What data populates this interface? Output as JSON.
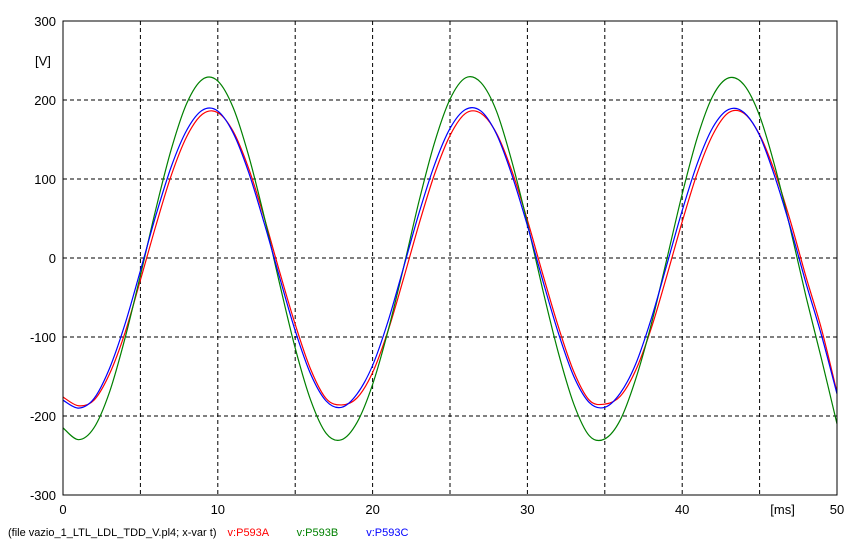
{
  "chart_data": {
    "type": "line",
    "x_unit": "[ms]",
    "y_unit": "[V]",
    "xlim": [
      0,
      50
    ],
    "ylim": [
      -300,
      300
    ],
    "x_ticks": [
      0,
      10,
      20,
      30,
      40,
      50
    ],
    "y_ticks": [
      -300,
      -200,
      -100,
      0,
      100,
      200,
      300
    ],
    "grid": true,
    "file_caption": "(file vazio_1_LTL_LDL_TDD_V.pl4; x-var t)",
    "series": [
      {
        "name": "v:P593A",
        "color": "#ff0000",
        "x": [
          0,
          1,
          2,
          3,
          4,
          5,
          6,
          7,
          8,
          9,
          10,
          11,
          12,
          13,
          14,
          15,
          16,
          17,
          18,
          19,
          20,
          21,
          22,
          23,
          24,
          25,
          26,
          27,
          28,
          29,
          30,
          31,
          32,
          33,
          34,
          35,
          36,
          37,
          38,
          39,
          40,
          41,
          42,
          43,
          44,
          45,
          46,
          47,
          48,
          49,
          50
        ],
        "values": [
          -176,
          -187,
          -180,
          -147,
          -95,
          -28,
          41,
          105,
          154,
          182,
          184,
          160,
          113,
          51,
          -18,
          -84,
          -141,
          -178,
          -186,
          -177,
          -145,
          -92,
          -26,
          43,
          106,
          155,
          183,
          183,
          158,
          110,
          48,
          -21,
          -87,
          -144,
          -180,
          -185,
          -175,
          -142,
          -89,
          -23,
          46,
          109,
          157,
          184,
          183,
          156,
          108,
          46,
          -24,
          -90,
          -170
        ]
      },
      {
        "name": "v:P593B",
        "color": "#008000",
        "x": [
          0,
          1,
          2,
          3,
          4,
          5,
          6,
          7,
          8,
          9,
          10,
          11,
          12,
          13,
          14,
          15,
          16,
          17,
          18,
          19,
          20,
          21,
          22,
          23,
          24,
          25,
          26,
          27,
          28,
          29,
          30,
          31,
          32,
          33,
          34,
          35,
          36,
          37,
          38,
          39,
          40,
          41,
          42,
          43,
          44,
          45,
          46,
          47,
          48,
          49,
          50
        ],
        "values": [
          -215,
          -230,
          -215,
          -170,
          -102,
          -22,
          62,
          138,
          196,
          226,
          224,
          190,
          129,
          52,
          -33,
          -114,
          -180,
          -222,
          -230,
          -208,
          -160,
          -92,
          -12,
          72,
          146,
          201,
          228,
          222,
          186,
          122,
          44,
          -41,
          -120,
          -185,
          -225,
          -229,
          -205,
          -153,
          -84,
          -2,
          81,
          154,
          206,
          228,
          219,
          180,
          115,
          36,
          -49,
          -128,
          -210
        ]
      },
      {
        "name": "v:P593C",
        "color": "#0000ff",
        "x": [
          0,
          1,
          2,
          3,
          4,
          5,
          6,
          7,
          8,
          9,
          10,
          11,
          12,
          13,
          14,
          15,
          16,
          17,
          18,
          19,
          20,
          21,
          22,
          23,
          24,
          25,
          26,
          27,
          28,
          29,
          30,
          31,
          32,
          33,
          34,
          35,
          36,
          37,
          38,
          39,
          40,
          41,
          42,
          43,
          44,
          45,
          46,
          47,
          48,
          49,
          50
        ],
        "values": [
          -180,
          -190,
          -178,
          -140,
          -84,
          -16,
          54,
          116,
          162,
          187,
          186,
          158,
          108,
          44,
          -25,
          -92,
          -147,
          -181,
          -189,
          -172,
          -136,
          -80,
          -12,
          57,
          118,
          164,
          188,
          186,
          157,
          105,
          41,
          -29,
          -95,
          -150,
          -183,
          -189,
          -171,
          -134,
          -77,
          -9,
          60,
          121,
          166,
          188,
          184,
          155,
          102,
          38,
          -32,
          -98,
          -172
        ]
      }
    ]
  }
}
